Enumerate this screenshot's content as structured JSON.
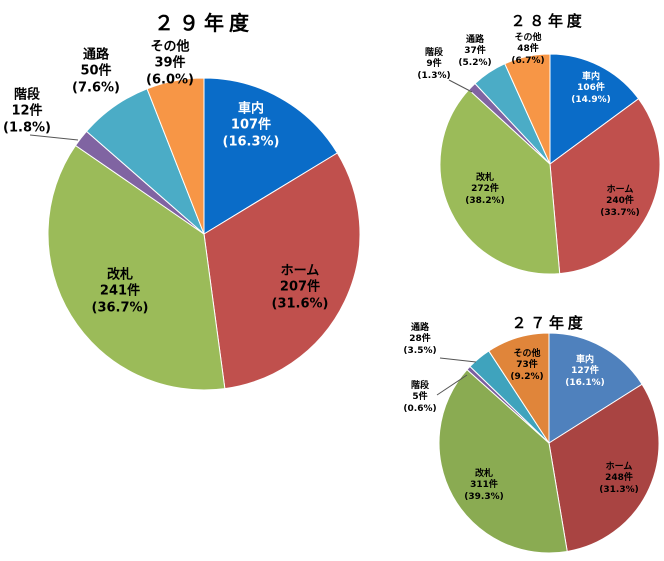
{
  "chart_data": [
    {
      "type": "pie",
      "title": "２９年度",
      "slices": [
        {
          "name": "車内",
          "value": 107,
          "count_label": "107件",
          "pct_label": "(16.3%)",
          "color": "#0a6cc8"
        },
        {
          "name": "ホーム",
          "value": 207,
          "count_label": "207件",
          "pct_label": "(31.6%)",
          "color": "#c0504d"
        },
        {
          "name": "改札",
          "value": 241,
          "count_label": "241件",
          "pct_label": "(36.7%)",
          "color": "#9bbb59"
        },
        {
          "name": "階段",
          "value": 12,
          "count_label": "12件",
          "pct_label": "(1.8%)",
          "color": "#8064a2"
        },
        {
          "name": "通路",
          "value": 50,
          "count_label": "50件",
          "pct_label": "(7.6%)",
          "color": "#4bacc6"
        },
        {
          "name": "その他",
          "value": 39,
          "count_label": "39件",
          "pct_label": "(6.0%)",
          "color": "#f79646"
        }
      ]
    },
    {
      "type": "pie",
      "title": "２８年度",
      "slices": [
        {
          "name": "車内",
          "value": 106,
          "count_label": "106件",
          "pct_label": "(14.9%)",
          "color": "#0a6cc8"
        },
        {
          "name": "ホーム",
          "value": 240,
          "count_label": "240件",
          "pct_label": "(33.7%)",
          "color": "#c0504d"
        },
        {
          "name": "改札",
          "value": 272,
          "count_label": "272件",
          "pct_label": "(38.2%)",
          "color": "#9bbb59"
        },
        {
          "name": "階段",
          "value": 9,
          "count_label": "9件",
          "pct_label": "(1.3%)",
          "color": "#8064a2"
        },
        {
          "name": "通路",
          "value": 37,
          "count_label": "37件",
          "pct_label": "(5.2%)",
          "color": "#4bacc6"
        },
        {
          "name": "その他",
          "value": 48,
          "count_label": "48件",
          "pct_label": "(6.7%)",
          "color": "#f79646"
        }
      ]
    },
    {
      "type": "pie",
      "title": "２７年度",
      "slices": [
        {
          "name": "車内",
          "value": 127,
          "count_label": "127件",
          "pct_label": "(16.1%)",
          "color": "#4f81bd"
        },
        {
          "name": "ホーム",
          "value": 248,
          "count_label": "248件",
          "pct_label": "(31.3%)",
          "color": "#a94442"
        },
        {
          "name": "改札",
          "value": 311,
          "count_label": "311件",
          "pct_label": "(39.3%)",
          "color": "#8aab52"
        },
        {
          "name": "階段",
          "value": 5,
          "count_label": "5件",
          "pct_label": "(0.6%)",
          "color": "#7b5fa0"
        },
        {
          "name": "通路",
          "value": 28,
          "count_label": "28件",
          "pct_label": "(3.5%)",
          "color": "#3fa3bd"
        },
        {
          "name": "その他",
          "value": 73,
          "count_label": "73件",
          "pct_label": "(9.2%)",
          "color": "#e0853a"
        }
      ]
    }
  ]
}
